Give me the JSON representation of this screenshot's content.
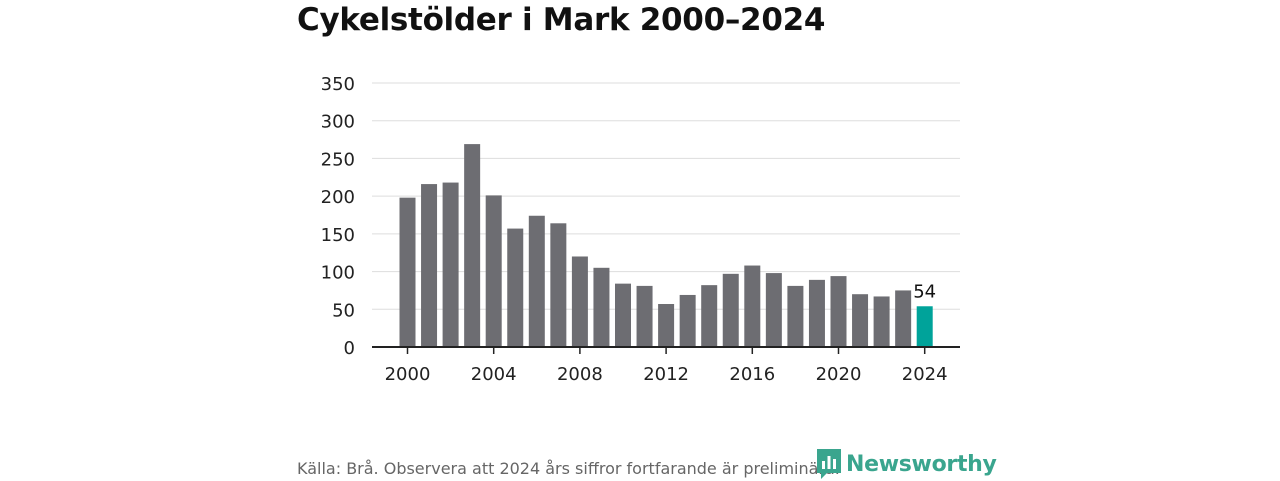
{
  "chart_data": {
    "type": "bar",
    "title": "Cykelstölder i Mark 2000–2024",
    "xlabel": "",
    "ylabel": "",
    "ylim": [
      0,
      350
    ],
    "yticks": [
      0,
      50,
      100,
      150,
      200,
      250,
      300,
      350
    ],
    "xticks": [
      2000,
      2004,
      2008,
      2012,
      2016,
      2020,
      2024
    ],
    "grid": true,
    "x": [
      2000,
      2001,
      2002,
      2003,
      2004,
      2005,
      2006,
      2007,
      2008,
      2009,
      2010,
      2011,
      2012,
      2013,
      2014,
      2015,
      2016,
      2017,
      2018,
      2019,
      2020,
      2021,
      2022,
      2023,
      2024
    ],
    "values": [
      198,
      216,
      218,
      269,
      201,
      157,
      174,
      164,
      120,
      105,
      84,
      81,
      57,
      69,
      82,
      97,
      108,
      98,
      81,
      89,
      94,
      70,
      67,
      75,
      54
    ],
    "highlight": {
      "x": 2024,
      "label": "54"
    },
    "colors": {
      "bar": "#6d6d72",
      "highlight": "#00a39a",
      "grid": "#dddddd",
      "axis": "#222222"
    }
  },
  "footer": {
    "source": "Källa: Brå. Observera att 2024 års siffror fortfarande är preliminära.",
    "logo_text": "Newsworthy",
    "logo_icon": "newsworthy-bar-chart-icon",
    "logo_color": "#3aa58e"
  }
}
